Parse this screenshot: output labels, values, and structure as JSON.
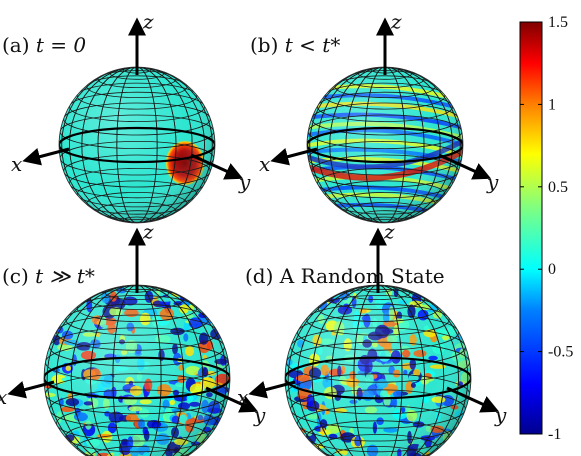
{
  "panels": [
    {
      "id": "a",
      "label_prefix": "(a) ",
      "label_math": "t = 0",
      "variant": "localized",
      "axis_labels": {
        "x": "x",
        "y": "y",
        "z": "z"
      }
    },
    {
      "id": "b",
      "label_prefix": "(b) ",
      "label_math": "t < t*",
      "variant": "band",
      "axis_labels": {
        "x": "x",
        "y": "y",
        "z": "z"
      }
    },
    {
      "id": "c",
      "label_prefix": "(c) ",
      "label_math": "t ≫ t*",
      "variant": "chaotic",
      "axis_labels": {
        "x": "x",
        "y": "y",
        "z": "z"
      }
    },
    {
      "id": "d",
      "label_prefix": "(d) A Random State",
      "label_math": "",
      "variant": "random",
      "axis_labels": {
        "x": "x",
        "y": "y",
        "z": "z"
      }
    }
  ],
  "colorbar": {
    "min": -1,
    "max": 1.5,
    "ticks": [
      1.5,
      1,
      0.5,
      0,
      -0.5,
      -1
    ],
    "tick_labels": [
      "1.5",
      "1",
      "0.5",
      "0",
      "-0.5",
      "-1"
    ],
    "colormap": "jet"
  },
  "colors": {
    "background_cyan": "#2ce6d0",
    "hotspot": "#a01010",
    "grid": "#1a1a1a"
  }
}
